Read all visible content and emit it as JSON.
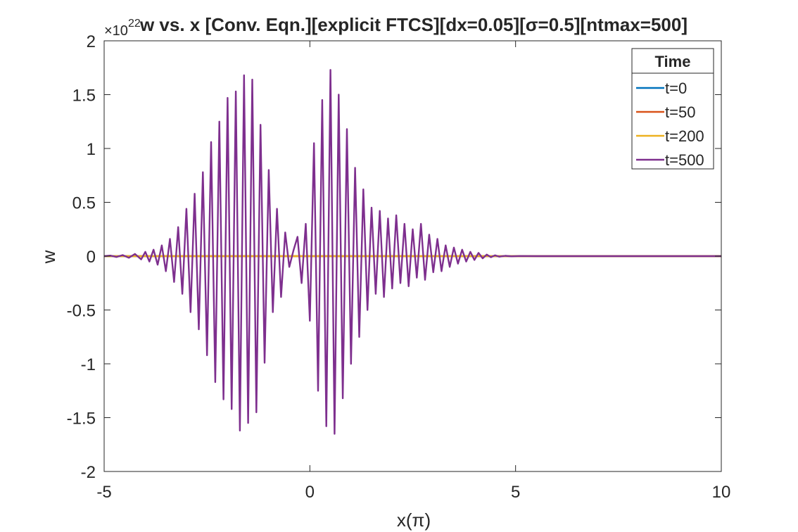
{
  "chart_data": {
    "type": "line",
    "title": "w vs. x [Conv. Eqn.][explicit FTCS][dx=0.05][σ=0.5][ntmax=500]",
    "xlabel": "x(π)",
    "ylabel": "w",
    "y_exponent_label": "×10",
    "y_exponent": "22",
    "xlim": [
      -5,
      10
    ],
    "ylim": [
      -2,
      2
    ],
    "x_ticks": [
      -5,
      0,
      5,
      10
    ],
    "x_tick_labels": [
      "-5",
      "0",
      "5",
      "10"
    ],
    "y_ticks": [
      -2,
      -1.5,
      -1,
      -0.5,
      0,
      0.5,
      1,
      1.5,
      2
    ],
    "y_tick_labels": [
      "-2",
      "-1.5",
      "-1",
      "-0.5",
      "0",
      "0.5",
      "1",
      "1.5",
      "2"
    ],
    "grid": false,
    "legend_title": "Time",
    "legend_position": "top-right",
    "series": [
      {
        "name": "t=0",
        "color": "#0072bd",
        "y_values_note_scale": 1,
        "x": [
          -5,
          10
        ],
        "y": [
          0,
          0
        ]
      },
      {
        "name": "t=50",
        "color": "#d95319",
        "x": [
          -5,
          10
        ],
        "y": [
          0,
          0
        ]
      },
      {
        "name": "t=200",
        "color": "#edb120",
        "x": [
          -5,
          10
        ],
        "y": [
          0,
          0
        ]
      },
      {
        "name": "t=500",
        "color": "#7e2f8e",
        "x": [
          -5.0,
          -4.85,
          -4.7,
          -4.55,
          -4.4,
          -4.25,
          -4.1,
          -4.0,
          -3.9,
          -3.8,
          -3.7,
          -3.6,
          -3.5,
          -3.4,
          -3.3,
          -3.2,
          -3.1,
          -3.0,
          -2.9,
          -2.8,
          -2.7,
          -2.6,
          -2.5,
          -2.4,
          -2.3,
          -2.2,
          -2.1,
          -2.0,
          -1.9,
          -1.8,
          -1.7,
          -1.6,
          -1.5,
          -1.4,
          -1.3,
          -1.2,
          -1.1,
          -1.0,
          -0.9,
          -0.8,
          -0.7,
          -0.6,
          -0.5,
          -0.4,
          -0.3,
          -0.2,
          -0.1,
          0.0,
          0.1,
          0.2,
          0.3,
          0.4,
          0.5,
          0.6,
          0.7,
          0.8,
          0.9,
          1.0,
          1.1,
          1.2,
          1.3,
          1.4,
          1.5,
          1.6,
          1.7,
          1.8,
          1.9,
          2.0,
          2.1,
          2.2,
          2.3,
          2.4,
          2.5,
          2.6,
          2.7,
          2.8,
          2.9,
          3.0,
          3.1,
          3.2,
          3.3,
          3.4,
          3.5,
          3.6,
          3.7,
          3.8,
          3.9,
          4.0,
          4.1,
          4.2,
          4.3,
          4.4,
          4.5,
          4.6,
          4.75,
          4.9,
          5.1,
          5.5,
          6.0,
          7.0,
          8.0,
          10.0
        ],
        "y": [
          0.0,
          0.005,
          -0.008,
          0.01,
          -0.015,
          0.02,
          -0.03,
          0.04,
          -0.05,
          0.06,
          -0.08,
          0.1,
          -0.14,
          0.16,
          -0.24,
          0.27,
          -0.35,
          0.44,
          -0.52,
          0.58,
          -0.68,
          0.78,
          -0.92,
          1.06,
          -1.17,
          1.25,
          -1.33,
          1.47,
          -1.42,
          1.53,
          -1.62,
          1.68,
          -1.55,
          1.64,
          -1.45,
          1.22,
          -0.99,
          0.8,
          -0.52,
          0.44,
          -0.38,
          0.22,
          -0.1,
          0.05,
          0.18,
          -0.25,
          0.3,
          -0.6,
          1.05,
          -1.25,
          1.45,
          -1.58,
          1.73,
          -1.65,
          1.5,
          -1.32,
          1.18,
          -1.0,
          0.82,
          -0.75,
          0.62,
          -0.5,
          0.45,
          -0.35,
          0.42,
          -0.38,
          0.35,
          -0.3,
          0.38,
          -0.25,
          0.3,
          -0.28,
          0.25,
          -0.2,
          0.3,
          -0.22,
          0.2,
          -0.15,
          0.16,
          -0.14,
          0.1,
          -0.1,
          0.08,
          -0.07,
          0.06,
          -0.05,
          0.04,
          -0.035,
          0.03,
          -0.02,
          0.015,
          -0.01,
          0.008,
          -0.005,
          0.003,
          -0.002,
          0.001,
          0.0,
          0.0,
          0.0,
          0.0,
          0.0
        ]
      }
    ]
  }
}
